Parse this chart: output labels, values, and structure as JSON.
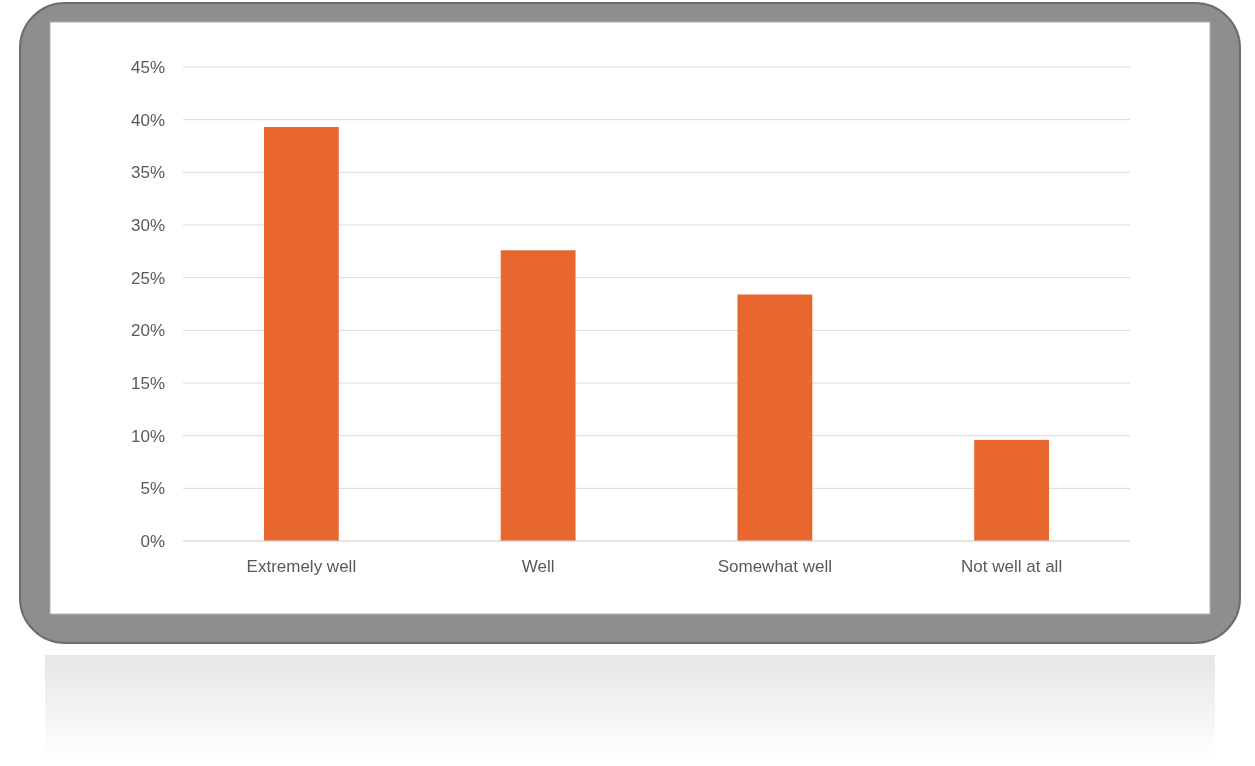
{
  "chart_data": {
    "type": "bar",
    "categories": [
      "Extremely well",
      "Well",
      "Somewhat well",
      "Not well at all"
    ],
    "values": [
      39.3,
      27.6,
      23.4,
      9.6
    ],
    "color": "#e8672f",
    "ylim": [
      0,
      45
    ],
    "yticks": [
      {
        "value": 0,
        "label": "0%"
      },
      {
        "value": 5,
        "label": "5%"
      },
      {
        "value": 10,
        "label": "10%"
      },
      {
        "value": 15,
        "label": "15%"
      },
      {
        "value": 20,
        "label": "20%"
      },
      {
        "value": 25,
        "label": "25%"
      },
      {
        "value": 30,
        "label": "30%"
      },
      {
        "value": 35,
        "label": "35%"
      },
      {
        "value": 40,
        "label": "40%"
      },
      {
        "value": 45,
        "label": "45%"
      }
    ],
    "grid": "y"
  }
}
